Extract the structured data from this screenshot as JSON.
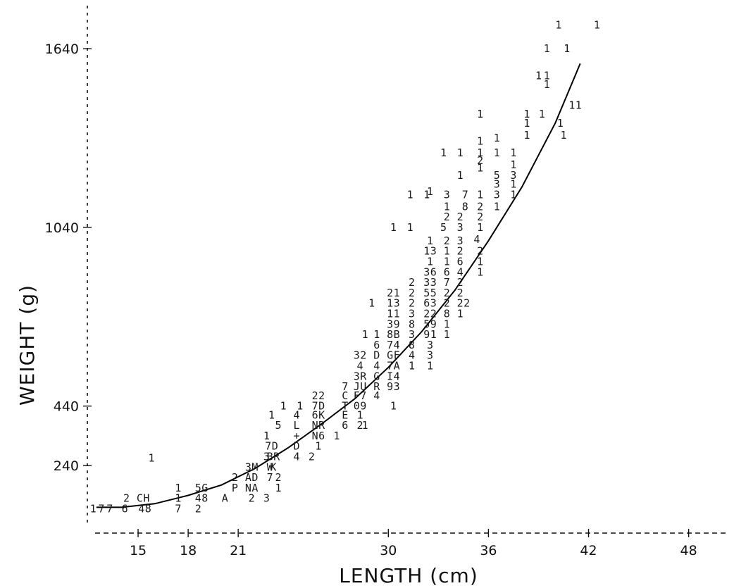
{
  "chart_data": {
    "type": "scatter",
    "title": "",
    "xlabel": "LENGTH (cm)",
    "ylabel": "WEIGHT (g)",
    "x_ticks": [
      15,
      18,
      21,
      30,
      36,
      42,
      48
    ],
    "y_ticks": [
      240,
      440,
      1040,
      1640
    ],
    "xlim": [
      12,
      50
    ],
    "ylim": [
      30,
      1780
    ],
    "grid": false,
    "legend": "none",
    "points": [
      {
        "x": 12.3,
        "y": 95,
        "label": "1"
      },
      {
        "x": 12.8,
        "y": 95,
        "label": "7"
      },
      {
        "x": 13.3,
        "y": 95,
        "label": "7"
      },
      {
        "x": 14.2,
        "y": 95,
        "label": "6"
      },
      {
        "x": 14.3,
        "y": 130,
        "label": "2"
      },
      {
        "x": 15.1,
        "y": 130,
        "label": "C"
      },
      {
        "x": 15.5,
        "y": 130,
        "label": "H"
      },
      {
        "x": 15.2,
        "y": 95,
        "label": "4"
      },
      {
        "x": 15.6,
        "y": 95,
        "label": "8"
      },
      {
        "x": 15.8,
        "y": 265,
        "label": "1"
      },
      {
        "x": 17.4,
        "y": 165,
        "label": "1"
      },
      {
        "x": 17.4,
        "y": 130,
        "label": "1"
      },
      {
        "x": 17.4,
        "y": 95,
        "label": "7"
      },
      {
        "x": 18.6,
        "y": 165,
        "label": "5"
      },
      {
        "x": 19.0,
        "y": 165,
        "label": "G"
      },
      {
        "x": 18.6,
        "y": 130,
        "label": "4"
      },
      {
        "x": 19.0,
        "y": 130,
        "label": "8"
      },
      {
        "x": 18.6,
        "y": 95,
        "label": "2"
      },
      {
        "x": 20.2,
        "y": 130,
        "label": "A"
      },
      {
        "x": 20.8,
        "y": 200,
        "label": "2"
      },
      {
        "x": 20.8,
        "y": 165,
        "label": "P"
      },
      {
        "x": 21.8,
        "y": 130,
        "label": "2"
      },
      {
        "x": 21.6,
        "y": 200,
        "label": "A"
      },
      {
        "x": 22.0,
        "y": 200,
        "label": "D"
      },
      {
        "x": 21.6,
        "y": 165,
        "label": "N"
      },
      {
        "x": 22.0,
        "y": 165,
        "label": "A"
      },
      {
        "x": 21.6,
        "y": 235,
        "label": "3"
      },
      {
        "x": 22.0,
        "y": 235,
        "label": "M"
      },
      {
        "x": 22.7,
        "y": 130,
        "label": "3"
      },
      {
        "x": 23.4,
        "y": 165,
        "label": "1"
      },
      {
        "x": 23.4,
        "y": 200,
        "label": "2"
      },
      {
        "x": 22.9,
        "y": 235,
        "label": "W"
      },
      {
        "x": 22.9,
        "y": 200,
        "label": "7"
      },
      {
        "x": 22.9,
        "y": 270,
        "label": "B"
      },
      {
        "x": 23.3,
        "y": 270,
        "label": "R"
      },
      {
        "x": 23.1,
        "y": 235,
        "label": "K"
      },
      {
        "x": 22.8,
        "y": 305,
        "label": "7"
      },
      {
        "x": 23.2,
        "y": 305,
        "label": "D"
      },
      {
        "x": 22.7,
        "y": 340,
        "label": "1"
      },
      {
        "x": 22.7,
        "y": 270,
        "label": "3"
      },
      {
        "x": 23.4,
        "y": 375,
        "label": "5"
      },
      {
        "x": 23.0,
        "y": 410,
        "label": "1"
      },
      {
        "x": 23.7,
        "y": 440,
        "label": "1"
      },
      {
        "x": 24.5,
        "y": 410,
        "label": "4"
      },
      {
        "x": 24.7,
        "y": 440,
        "label": "1"
      },
      {
        "x": 24.5,
        "y": 375,
        "label": "L"
      },
      {
        "x": 24.5,
        "y": 340,
        "label": "+"
      },
      {
        "x": 24.5,
        "y": 305,
        "label": "D"
      },
      {
        "x": 24.5,
        "y": 270,
        "label": "4"
      },
      {
        "x": 25.4,
        "y": 270,
        "label": "2"
      },
      {
        "x": 25.8,
        "y": 305,
        "label": "1"
      },
      {
        "x": 25.6,
        "y": 340,
        "label": "N"
      },
      {
        "x": 26.0,
        "y": 340,
        "label": "6"
      },
      {
        "x": 25.6,
        "y": 375,
        "label": "N"
      },
      {
        "x": 26.0,
        "y": 375,
        "label": "R"
      },
      {
        "x": 25.6,
        "y": 410,
        "label": "6"
      },
      {
        "x": 26.0,
        "y": 410,
        "label": "K"
      },
      {
        "x": 25.6,
        "y": 440,
        "label": "7"
      },
      {
        "x": 26.0,
        "y": 440,
        "label": "D"
      },
      {
        "x": 25.6,
        "y": 475,
        "label": "2"
      },
      {
        "x": 26.0,
        "y": 475,
        "label": "2"
      },
      {
        "x": 26.9,
        "y": 340,
        "label": "1"
      },
      {
        "x": 27.4,
        "y": 375,
        "label": "6"
      },
      {
        "x": 27.4,
        "y": 410,
        "label": "E"
      },
      {
        "x": 27.4,
        "y": 440,
        "label": "T"
      },
      {
        "x": 27.4,
        "y": 475,
        "label": "C"
      },
      {
        "x": 27.4,
        "y": 505,
        "label": "7"
      },
      {
        "x": 28.3,
        "y": 375,
        "label": "2"
      },
      {
        "x": 28.6,
        "y": 375,
        "label": "1"
      },
      {
        "x": 28.3,
        "y": 410,
        "label": "1"
      },
      {
        "x": 28.1,
        "y": 440,
        "label": "0"
      },
      {
        "x": 28.5,
        "y": 440,
        "label": "9"
      },
      {
        "x": 28.1,
        "y": 475,
        "label": "F"
      },
      {
        "x": 28.5,
        "y": 475,
        "label": "7"
      },
      {
        "x": 28.1,
        "y": 505,
        "label": "J"
      },
      {
        "x": 28.5,
        "y": 505,
        "label": "U"
      },
      {
        "x": 28.1,
        "y": 540,
        "label": "3"
      },
      {
        "x": 28.5,
        "y": 540,
        "label": "R"
      },
      {
        "x": 28.3,
        "y": 575,
        "label": "4"
      },
      {
        "x": 28.1,
        "y": 610,
        "label": "3"
      },
      {
        "x": 28.5,
        "y": 610,
        "label": "2"
      },
      {
        "x": 29.3,
        "y": 475,
        "label": "4"
      },
      {
        "x": 29.3,
        "y": 505,
        "label": "R"
      },
      {
        "x": 29.3,
        "y": 540,
        "label": "G"
      },
      {
        "x": 29.3,
        "y": 575,
        "label": "4"
      },
      {
        "x": 29.3,
        "y": 610,
        "label": "D"
      },
      {
        "x": 29.3,
        "y": 645,
        "label": "6"
      },
      {
        "x": 29.3,
        "y": 680,
        "label": "1"
      },
      {
        "x": 28.6,
        "y": 680,
        "label": "1"
      },
      {
        "x": 30.3,
        "y": 440,
        "label": "1"
      },
      {
        "x": 30.1,
        "y": 505,
        "label": "9"
      },
      {
        "x": 30.5,
        "y": 505,
        "label": "3"
      },
      {
        "x": 30.1,
        "y": 540,
        "label": "I"
      },
      {
        "x": 30.5,
        "y": 540,
        "label": "4"
      },
      {
        "x": 30.1,
        "y": 575,
        "label": "7"
      },
      {
        "x": 30.5,
        "y": 575,
        "label": "A"
      },
      {
        "x": 30.1,
        "y": 610,
        "label": "G"
      },
      {
        "x": 30.5,
        "y": 610,
        "label": "F"
      },
      {
        "x": 30.1,
        "y": 645,
        "label": "7"
      },
      {
        "x": 30.5,
        "y": 645,
        "label": "4"
      },
      {
        "x": 30.1,
        "y": 680,
        "label": "8"
      },
      {
        "x": 30.5,
        "y": 680,
        "label": "B"
      },
      {
        "x": 30.1,
        "y": 715,
        "label": "3"
      },
      {
        "x": 30.5,
        "y": 715,
        "label": "9"
      },
      {
        "x": 30.1,
        "y": 750,
        "label": "1"
      },
      {
        "x": 30.5,
        "y": 750,
        "label": "1"
      },
      {
        "x": 30.1,
        "y": 785,
        "label": "1"
      },
      {
        "x": 30.5,
        "y": 785,
        "label": "3"
      },
      {
        "x": 30.1,
        "y": 820,
        "label": "2"
      },
      {
        "x": 30.5,
        "y": 820,
        "label": "1"
      },
      {
        "x": 29.0,
        "y": 785,
        "label": "1"
      },
      {
        "x": 30.3,
        "y": 1040,
        "label": "1"
      },
      {
        "x": 31.3,
        "y": 1040,
        "label": "1"
      },
      {
        "x": 31.3,
        "y": 1150,
        "label": "1"
      },
      {
        "x": 32.3,
        "y": 1150,
        "label": "1"
      },
      {
        "x": 31.4,
        "y": 575,
        "label": "1"
      },
      {
        "x": 31.4,
        "y": 610,
        "label": "4"
      },
      {
        "x": 31.4,
        "y": 645,
        "label": "8"
      },
      {
        "x": 31.4,
        "y": 680,
        "label": "3"
      },
      {
        "x": 31.4,
        "y": 715,
        "label": "8"
      },
      {
        "x": 31.4,
        "y": 750,
        "label": "3"
      },
      {
        "x": 31.4,
        "y": 785,
        "label": "2"
      },
      {
        "x": 31.4,
        "y": 820,
        "label": "2"
      },
      {
        "x": 31.4,
        "y": 855,
        "label": "2"
      },
      {
        "x": 32.5,
        "y": 575,
        "label": "1"
      },
      {
        "x": 32.5,
        "y": 610,
        "label": "3"
      },
      {
        "x": 32.5,
        "y": 645,
        "label": "3"
      },
      {
        "x": 32.3,
        "y": 680,
        "label": "9"
      },
      {
        "x": 32.7,
        "y": 680,
        "label": "1"
      },
      {
        "x": 32.3,
        "y": 715,
        "label": "5"
      },
      {
        "x": 32.7,
        "y": 715,
        "label": "9"
      },
      {
        "x": 32.3,
        "y": 750,
        "label": "2"
      },
      {
        "x": 32.7,
        "y": 750,
        "label": "2"
      },
      {
        "x": 32.3,
        "y": 785,
        "label": "6"
      },
      {
        "x": 32.7,
        "y": 785,
        "label": "3"
      },
      {
        "x": 32.3,
        "y": 820,
        "label": "5"
      },
      {
        "x": 32.7,
        "y": 820,
        "label": "5"
      },
      {
        "x": 32.3,
        "y": 855,
        "label": "3"
      },
      {
        "x": 32.7,
        "y": 855,
        "label": "3"
      },
      {
        "x": 32.3,
        "y": 890,
        "label": "3"
      },
      {
        "x": 32.7,
        "y": 890,
        "label": "6"
      },
      {
        "x": 32.5,
        "y": 925,
        "label": "1"
      },
      {
        "x": 32.3,
        "y": 960,
        "label": "1"
      },
      {
        "x": 32.7,
        "y": 960,
        "label": "3"
      },
      {
        "x": 32.5,
        "y": 995,
        "label": "1"
      },
      {
        "x": 32.5,
        "y": 1160,
        "label": "1"
      },
      {
        "x": 33.5,
        "y": 680,
        "label": "1"
      },
      {
        "x": 33.5,
        "y": 715,
        "label": "1"
      },
      {
        "x": 33.5,
        "y": 750,
        "label": "8"
      },
      {
        "x": 33.5,
        "y": 785,
        "label": "2"
      },
      {
        "x": 33.5,
        "y": 820,
        "label": "2"
      },
      {
        "x": 33.5,
        "y": 855,
        "label": "7"
      },
      {
        "x": 33.5,
        "y": 890,
        "label": "6"
      },
      {
        "x": 33.5,
        "y": 925,
        "label": "1"
      },
      {
        "x": 33.5,
        "y": 960,
        "label": "1"
      },
      {
        "x": 33.5,
        "y": 995,
        "label": "2"
      },
      {
        "x": 33.3,
        "y": 1040,
        "label": "5"
      },
      {
        "x": 33.5,
        "y": 1075,
        "label": "2"
      },
      {
        "x": 33.5,
        "y": 1110,
        "label": "1"
      },
      {
        "x": 33.5,
        "y": 1150,
        "label": "3"
      },
      {
        "x": 33.3,
        "y": 1290,
        "label": "1"
      },
      {
        "x": 34.3,
        "y": 750,
        "label": "1"
      },
      {
        "x": 34.3,
        "y": 785,
        "label": "2"
      },
      {
        "x": 34.7,
        "y": 785,
        "label": "2"
      },
      {
        "x": 34.3,
        "y": 820,
        "label": "2"
      },
      {
        "x": 34.3,
        "y": 855,
        "label": "2"
      },
      {
        "x": 34.3,
        "y": 890,
        "label": "4"
      },
      {
        "x": 34.3,
        "y": 925,
        "label": "6"
      },
      {
        "x": 34.3,
        "y": 960,
        "label": "2"
      },
      {
        "x": 34.3,
        "y": 995,
        "label": "3"
      },
      {
        "x": 34.3,
        "y": 1040,
        "label": "3"
      },
      {
        "x": 34.3,
        "y": 1075,
        "label": "2"
      },
      {
        "x": 34.6,
        "y": 1150,
        "label": "7"
      },
      {
        "x": 34.6,
        "y": 1110,
        "label": "8"
      },
      {
        "x": 34.3,
        "y": 1215,
        "label": "1"
      },
      {
        "x": 34.3,
        "y": 1290,
        "label": "1"
      },
      {
        "x": 35.5,
        "y": 890,
        "label": "1"
      },
      {
        "x": 35.5,
        "y": 925,
        "label": "1"
      },
      {
        "x": 35.5,
        "y": 960,
        "label": "2"
      },
      {
        "x": 35.3,
        "y": 1000,
        "label": "4"
      },
      {
        "x": 35.5,
        "y": 1040,
        "label": "1"
      },
      {
        "x": 35.5,
        "y": 1075,
        "label": "2"
      },
      {
        "x": 35.5,
        "y": 1110,
        "label": "2"
      },
      {
        "x": 35.5,
        "y": 1150,
        "label": "1"
      },
      {
        "x": 35.5,
        "y": 1240,
        "label": "1"
      },
      {
        "x": 35.5,
        "y": 1265,
        "label": "2"
      },
      {
        "x": 35.5,
        "y": 1290,
        "label": "1"
      },
      {
        "x": 35.5,
        "y": 1330,
        "label": "1"
      },
      {
        "x": 35.5,
        "y": 1420,
        "label": "1"
      },
      {
        "x": 36.5,
        "y": 1110,
        "label": "1"
      },
      {
        "x": 36.5,
        "y": 1150,
        "label": "3"
      },
      {
        "x": 36.5,
        "y": 1185,
        "label": "3"
      },
      {
        "x": 36.5,
        "y": 1215,
        "label": "5"
      },
      {
        "x": 36.5,
        "y": 1290,
        "label": "1"
      },
      {
        "x": 36.5,
        "y": 1340,
        "label": "1"
      },
      {
        "x": 37.5,
        "y": 1290,
        "label": "1"
      },
      {
        "x": 37.5,
        "y": 1250,
        "label": "1"
      },
      {
        "x": 37.5,
        "y": 1215,
        "label": "3"
      },
      {
        "x": 37.5,
        "y": 1185,
        "label": "1"
      },
      {
        "x": 37.5,
        "y": 1150,
        "label": "1"
      },
      {
        "x": 38.3,
        "y": 1350,
        "label": "1"
      },
      {
        "x": 38.3,
        "y": 1390,
        "label": "1"
      },
      {
        "x": 38.3,
        "y": 1420,
        "label": "1"
      },
      {
        "x": 39.2,
        "y": 1420,
        "label": "1"
      },
      {
        "x": 39.0,
        "y": 1550,
        "label": "1"
      },
      {
        "x": 39.5,
        "y": 1550,
        "label": "1"
      },
      {
        "x": 39.5,
        "y": 1520,
        "label": "1"
      },
      {
        "x": 39.5,
        "y": 1640,
        "label": "1"
      },
      {
        "x": 40.7,
        "y": 1640,
        "label": "1"
      },
      {
        "x": 40.2,
        "y": 1720,
        "label": "1"
      },
      {
        "x": 42.5,
        "y": 1720,
        "label": "1"
      },
      {
        "x": 40.3,
        "y": 1390,
        "label": "1"
      },
      {
        "x": 40.5,
        "y": 1350,
        "label": "1"
      },
      {
        "x": 41.0,
        "y": 1450,
        "label": "1"
      },
      {
        "x": 41.4,
        "y": 1450,
        "label": "1"
      }
    ],
    "fit_curve": {
      "x": [
        12.5,
        14,
        16,
        18,
        20,
        22,
        24,
        26,
        28,
        30,
        32,
        34,
        36,
        38,
        40,
        41.5
      ],
      "y": [
        100,
        100,
        112,
        140,
        175,
        230,
        300,
        380,
        465,
        570,
        690,
        830,
        995,
        1175,
        1390,
        1590
      ]
    }
  }
}
